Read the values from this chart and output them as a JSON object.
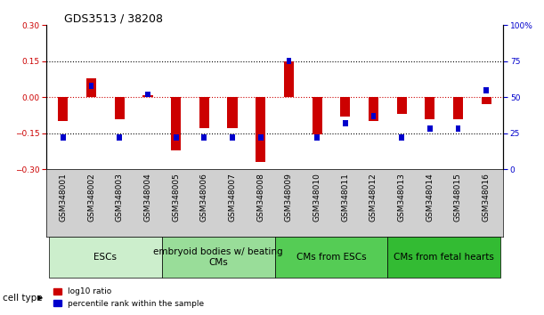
{
  "title": "GDS3513 / 38208",
  "samples": [
    "GSM348001",
    "GSM348002",
    "GSM348003",
    "GSM348004",
    "GSM348005",
    "GSM348006",
    "GSM348007",
    "GSM348008",
    "GSM348009",
    "GSM348010",
    "GSM348011",
    "GSM348012",
    "GSM348013",
    "GSM348014",
    "GSM348015",
    "GSM348016"
  ],
  "log10_ratio": [
    -0.1,
    0.08,
    -0.09,
    0.01,
    -0.22,
    -0.13,
    -0.13,
    -0.27,
    0.15,
    -0.155,
    -0.08,
    -0.1,
    -0.07,
    -0.09,
    -0.09,
    -0.03
  ],
  "percentile_rank": [
    22,
    58,
    22,
    52,
    22,
    22,
    22,
    22,
    75,
    22,
    32,
    37,
    22,
    28,
    28,
    55
  ],
  "red_color": "#cc0000",
  "blue_color": "#0000cc",
  "ylim_left": [
    -0.3,
    0.3
  ],
  "ylim_right": [
    0,
    100
  ],
  "yticks_left": [
    -0.3,
    -0.15,
    0,
    0.15,
    0.3
  ],
  "yticks_right": [
    0,
    25,
    50,
    75,
    100
  ],
  "cell_type_groups": [
    {
      "label": "ESCs",
      "start": 0,
      "end": 3,
      "color": "#cceecc"
    },
    {
      "label": "embryoid bodies w/ beating\nCMs",
      "start": 4,
      "end": 7,
      "color": "#99dd99"
    },
    {
      "label": "CMs from ESCs",
      "start": 8,
      "end": 11,
      "color": "#55cc55"
    },
    {
      "label": "CMs from fetal hearts",
      "start": 12,
      "end": 15,
      "color": "#33bb33"
    }
  ],
  "legend_red_label": "log10 ratio",
  "legend_blue_label": "percentile rank within the sample",
  "cell_type_label": "cell type",
  "tick_label_fontsize": 6.5,
  "title_fontsize": 9,
  "group_label_fontsize": 7.5
}
